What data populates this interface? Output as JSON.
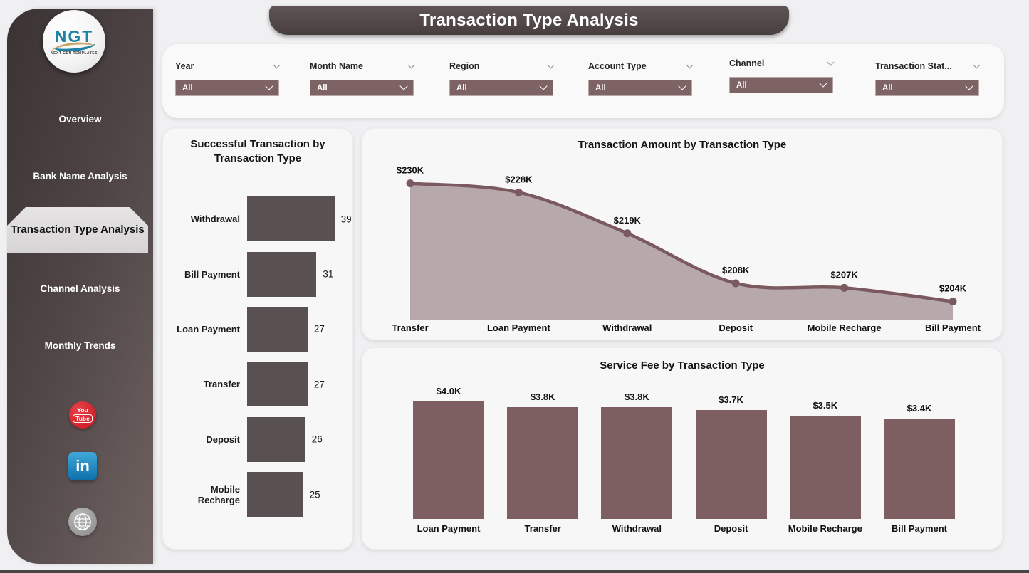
{
  "page": {
    "title": "Transaction Type Analysis"
  },
  "sidebar": {
    "logo": {
      "text": "NGT",
      "subtext": "NEXT GEN TEMPLATES"
    },
    "items": [
      {
        "label": "Overview",
        "active": false
      },
      {
        "label": "Bank Name Analysis",
        "active": false
      },
      {
        "label": "Transaction Type Analysis",
        "active": true
      },
      {
        "label": "Channel Analysis",
        "active": false
      },
      {
        "label": "Monthly Trends",
        "active": false
      }
    ],
    "social": [
      {
        "name": "youtube-icon",
        "text_top": "You",
        "text_bottom": "Tube"
      },
      {
        "name": "linkedin-icon",
        "text": "in"
      },
      {
        "name": "website-icon",
        "text": "www"
      }
    ]
  },
  "filters": [
    {
      "label": "Year",
      "value": "All"
    },
    {
      "label": "Month Name",
      "value": "All"
    },
    {
      "label": "Region",
      "value": "All"
    },
    {
      "label": "Account Type",
      "value": "All"
    },
    {
      "label": "Channel",
      "value": "All"
    },
    {
      "label": "Transaction Stat...",
      "value": "All"
    }
  ],
  "colors": {
    "dark_bar": "#595052",
    "area_fill": "#b7a9ab",
    "area_line": "#7a5a5e",
    "fee_bar": "#7d5f62",
    "filter_select_bg": "#7e6365",
    "sidebar_dark": "#3e3536",
    "sidebar_light": "#6e6160",
    "youtube_red": "#d6212b",
    "linkedin_blue": "#0077b5"
  },
  "chart_data": [
    {
      "id": "successful-transactions",
      "type": "bar",
      "orientation": "horizontal",
      "title": "Successful Transaction by Transaction Type",
      "categories": [
        "Withdrawal",
        "Bill Payment",
        "Loan Payment",
        "Transfer",
        "Deposit",
        "Mobile Recharge"
      ],
      "values": [
        39,
        31,
        27,
        27,
        26,
        25
      ],
      "xlim": [
        0,
        42
      ],
      "grid": false,
      "legend": "none"
    },
    {
      "id": "transaction-amount",
      "type": "area",
      "title": "Transaction Amount by Transaction Type",
      "categories": [
        "Transfer",
        "Loan Payment",
        "Withdrawal",
        "Deposit",
        "Mobile Recharge",
        "Bill Payment"
      ],
      "values": [
        230,
        228,
        219,
        208,
        207,
        204
      ],
      "labels": [
        "$230K",
        "$228K",
        "$219K",
        "$208K",
        "$207K",
        "$204K"
      ],
      "unit": "USD thousands",
      "ylim": [
        200,
        242
      ],
      "grid": false,
      "legend": "none"
    },
    {
      "id": "service-fee",
      "type": "bar",
      "orientation": "vertical",
      "title": "Service Fee by Transaction Type",
      "categories": [
        "Loan Payment",
        "Transfer",
        "Withdrawal",
        "Deposit",
        "Mobile Recharge",
        "Bill Payment"
      ],
      "values": [
        4.0,
        3.8,
        3.8,
        3.7,
        3.5,
        3.4
      ],
      "labels": [
        "$4.0K",
        "$3.8K",
        "$3.8K",
        "$3.7K",
        "$3.5K",
        "$3.4K"
      ],
      "unit": "USD thousands",
      "ylim": [
        0,
        4.4
      ],
      "grid": false,
      "legend": "none"
    }
  ]
}
